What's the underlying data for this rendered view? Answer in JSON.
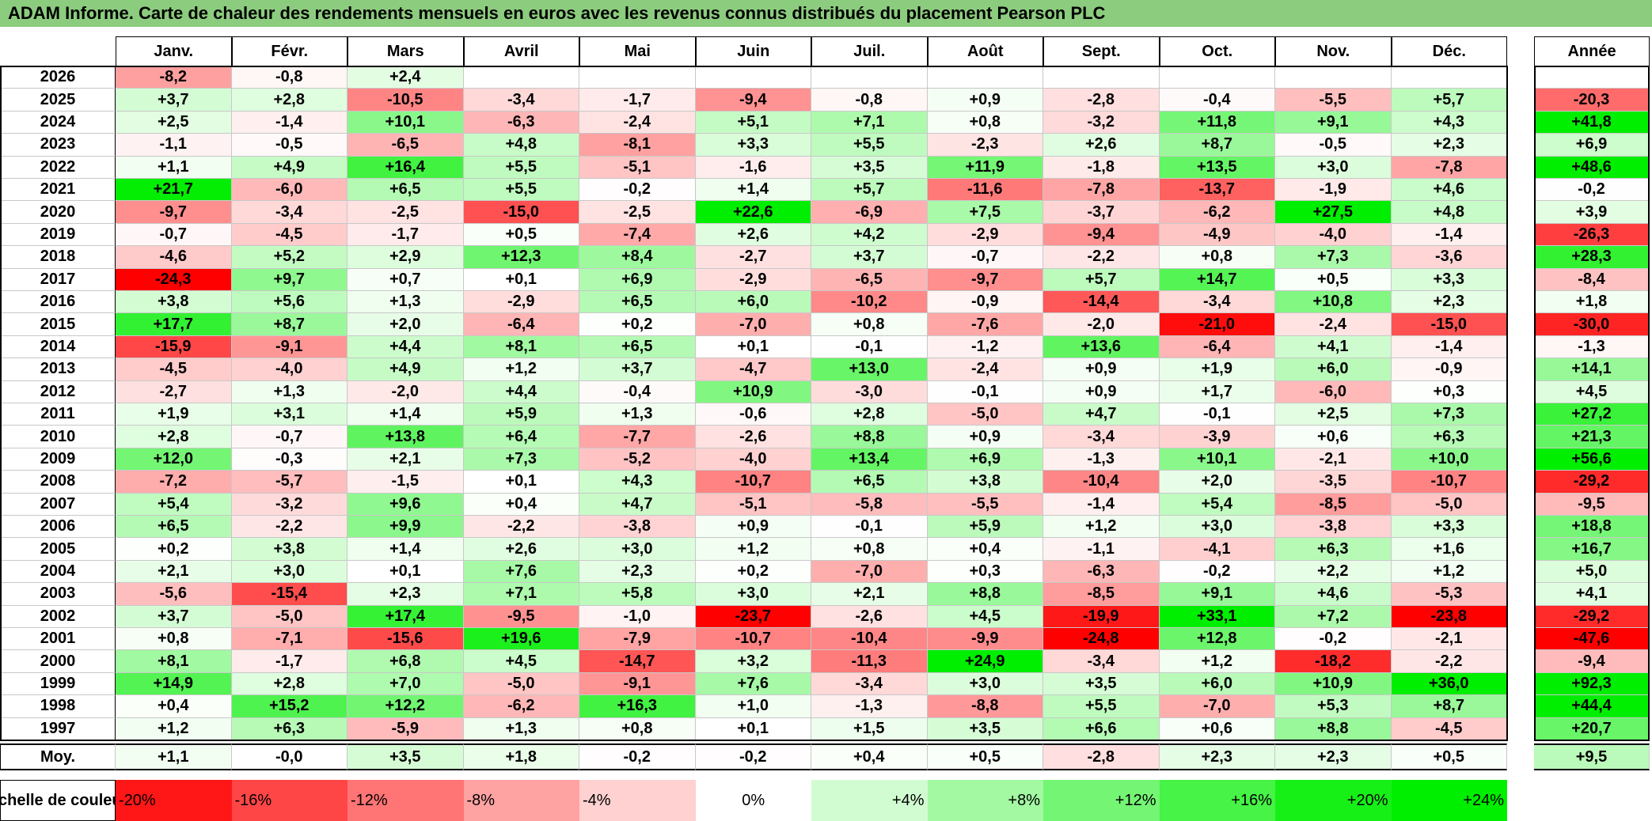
{
  "title": "ADAM Informe. Carte de chaleur des rendements mensuels en euros avec les revenus connus distribués du placement Pearson PLC",
  "chart_data": {
    "type": "heatmap",
    "title": "ADAM Informe. Carte de chaleur des rendements mensuels en euros avec les revenus connus distribués du placement Pearson PLC",
    "columns": [
      "Janv.",
      "Févr.",
      "Mars",
      "Avril",
      "Mai",
      "Juin",
      "Juil.",
      "Août",
      "Sept.",
      "Oct.",
      "Nov.",
      "Déc."
    ],
    "year_column_label": "Année",
    "rows": [
      {
        "year": "2026",
        "months": [
          "-8,2",
          "-0,8",
          "+2,4",
          "",
          "",
          "",
          "",
          "",
          "",
          "",
          "",
          ""
        ],
        "annual": ""
      },
      {
        "year": "2025",
        "months": [
          "+3,7",
          "+2,8",
          "-10,5",
          "-3,4",
          "-1,7",
          "-9,4",
          "-0,8",
          "+0,9",
          "-2,8",
          "-0,4",
          "-5,5",
          "+5,7"
        ],
        "annual": "-20,3"
      },
      {
        "year": "2024",
        "months": [
          "+2,5",
          "-1,4",
          "+10,1",
          "-6,3",
          "-2,4",
          "+5,1",
          "+7,1",
          "+0,8",
          "-3,2",
          "+11,8",
          "+9,1",
          "+4,3"
        ],
        "annual": "+41,8"
      },
      {
        "year": "2023",
        "months": [
          "-1,1",
          "-0,5",
          "-6,5",
          "+4,8",
          "-8,1",
          "+3,3",
          "+5,5",
          "-2,3",
          "+2,6",
          "+8,7",
          "-0,5",
          "+2,3"
        ],
        "annual": "+6,9"
      },
      {
        "year": "2022",
        "months": [
          "+1,1",
          "+4,9",
          "+16,4",
          "+5,5",
          "-5,1",
          "-1,6",
          "+3,5",
          "+11,9",
          "-1,8",
          "+13,5",
          "+3,0",
          "-7,8"
        ],
        "annual": "+48,6"
      },
      {
        "year": "2021",
        "months": [
          "+21,7",
          "-6,0",
          "+6,5",
          "+5,5",
          "-0,2",
          "+1,4",
          "+5,7",
          "-11,6",
          "-7,8",
          "-13,7",
          "-1,9",
          "+4,6"
        ],
        "annual": "-0,2"
      },
      {
        "year": "2020",
        "months": [
          "-9,7",
          "-3,4",
          "-2,5",
          "-15,0",
          "-2,5",
          "+22,6",
          "-6,9",
          "+7,5",
          "-3,7",
          "-6,2",
          "+27,5",
          "+4,8"
        ],
        "annual": "+3,9"
      },
      {
        "year": "2019",
        "months": [
          "-0,7",
          "-4,5",
          "-1,7",
          "+0,5",
          "-7,4",
          "+2,6",
          "+4,2",
          "-2,9",
          "-9,4",
          "-4,9",
          "-4,0",
          "-1,4"
        ],
        "annual": "-26,3"
      },
      {
        "year": "2018",
        "months": [
          "-4,6",
          "+5,2",
          "+2,9",
          "+12,3",
          "+8,4",
          "-2,7",
          "+3,7",
          "-0,7",
          "-2,2",
          "+0,8",
          "+7,3",
          "-3,6"
        ],
        "annual": "+28,3"
      },
      {
        "year": "2017",
        "months": [
          "-24,3",
          "+9,7",
          "+0,7",
          "+0,1",
          "+6,9",
          "-2,9",
          "-6,5",
          "-9,7",
          "+5,7",
          "+14,7",
          "+0,5",
          "+3,3"
        ],
        "annual": "-8,4"
      },
      {
        "year": "2016",
        "months": [
          "+3,8",
          "+5,6",
          "+1,3",
          "-2,9",
          "+6,5",
          "+6,0",
          "-10,2",
          "-0,9",
          "-14,4",
          "-3,4",
          "+10,8",
          "+2,3"
        ],
        "annual": "+1,8"
      },
      {
        "year": "2015",
        "months": [
          "+17,7",
          "+8,7",
          "+2,0",
          "-6,4",
          "+0,2",
          "-7,0",
          "+0,8",
          "-7,6",
          "-2,0",
          "-21,0",
          "-2,4",
          "-15,0"
        ],
        "annual": "-30,0"
      },
      {
        "year": "2014",
        "months": [
          "-15,9",
          "-9,1",
          "+4,4",
          "+8,1",
          "+6,5",
          "+0,1",
          "-0,1",
          "-1,2",
          "+13,6",
          "-6,4",
          "+4,1",
          "-1,4"
        ],
        "annual": "-1,3"
      },
      {
        "year": "2013",
        "months": [
          "-4,5",
          "-4,0",
          "+4,9",
          "+1,2",
          "+3,7",
          "-4,7",
          "+13,0",
          "-2,4",
          "+0,9",
          "+1,9",
          "+6,0",
          "-0,9"
        ],
        "annual": "+14,1"
      },
      {
        "year": "2012",
        "months": [
          "-2,7",
          "+1,3",
          "-2,0",
          "+4,4",
          "-0,4",
          "+10,9",
          "-3,0",
          "-0,1",
          "+0,9",
          "+1,7",
          "-6,0",
          "+0,3"
        ],
        "annual": "+4,5"
      },
      {
        "year": "2011",
        "months": [
          "+1,9",
          "+3,1",
          "+1,4",
          "+5,9",
          "+1,3",
          "-0,6",
          "+2,8",
          "-5,0",
          "+4,7",
          "-0,1",
          "+2,5",
          "+7,3"
        ],
        "annual": "+27,2"
      },
      {
        "year": "2010",
        "months": [
          "+2,8",
          "-0,7",
          "+13,8",
          "+6,4",
          "-7,7",
          "-2,6",
          "+8,8",
          "+0,9",
          "-3,4",
          "-3,9",
          "+0,6",
          "+6,3"
        ],
        "annual": "+21,3"
      },
      {
        "year": "2009",
        "months": [
          "+12,0",
          "-0,3",
          "+2,1",
          "+7,3",
          "-5,2",
          "-4,0",
          "+13,4",
          "+6,9",
          "-1,3",
          "+10,1",
          "-2,1",
          "+10,0"
        ],
        "annual": "+56,6"
      },
      {
        "year": "2008",
        "months": [
          "-7,2",
          "-5,7",
          "-1,5",
          "+0,1",
          "+4,3",
          "-10,7",
          "+6,5",
          "+3,8",
          "-10,4",
          "+2,0",
          "-3,5",
          "-10,7"
        ],
        "annual": "-29,2"
      },
      {
        "year": "2007",
        "months": [
          "+5,4",
          "-3,2",
          "+9,6",
          "+0,4",
          "+4,7",
          "-5,1",
          "-5,8",
          "-5,5",
          "-1,4",
          "+5,4",
          "-8,5",
          "-5,0"
        ],
        "annual": "-9,5"
      },
      {
        "year": "2006",
        "months": [
          "+6,5",
          "-2,2",
          "+9,9",
          "-2,2",
          "-3,8",
          "+0,9",
          "-0,1",
          "+5,9",
          "+1,2",
          "+3,0",
          "-3,8",
          "+3,3"
        ],
        "annual": "+18,8"
      },
      {
        "year": "2005",
        "months": [
          "+0,2",
          "+3,8",
          "+1,4",
          "+2,6",
          "+3,0",
          "+1,2",
          "+0,8",
          "+0,4",
          "-1,1",
          "-4,1",
          "+6,3",
          "+1,6"
        ],
        "annual": "+16,7"
      },
      {
        "year": "2004",
        "months": [
          "+2,1",
          "+3,0",
          "+0,1",
          "+7,6",
          "+2,3",
          "+0,2",
          "-7,0",
          "+0,3",
          "-6,3",
          "-0,2",
          "+2,2",
          "+1,2"
        ],
        "annual": "+5,0"
      },
      {
        "year": "2003",
        "months": [
          "-5,6",
          "-15,4",
          "+2,3",
          "+7,1",
          "+5,8",
          "+3,0",
          "+2,1",
          "+8,8",
          "-8,5",
          "+9,1",
          "+4,6",
          "-5,3"
        ],
        "annual": "+4,1"
      },
      {
        "year": "2002",
        "months": [
          "+3,7",
          "-5,0",
          "+17,4",
          "-9,5",
          "-1,0",
          "-23,7",
          "-2,6",
          "+4,5",
          "-19,9",
          "+33,1",
          "+7,2",
          "-23,8"
        ],
        "annual": "-29,2"
      },
      {
        "year": "2001",
        "months": [
          "+0,8",
          "-7,1",
          "-15,6",
          "+19,6",
          "-7,9",
          "-10,7",
          "-10,4",
          "-9,9",
          "-24,8",
          "+12,8",
          "-0,2",
          "-2,1"
        ],
        "annual": "-47,6"
      },
      {
        "year": "2000",
        "months": [
          "+8,1",
          "-1,7",
          "+6,8",
          "+4,5",
          "-14,7",
          "+3,2",
          "-11,3",
          "+24,9",
          "-3,4",
          "+1,2",
          "-18,2",
          "-2,2"
        ],
        "annual": "-9,4"
      },
      {
        "year": "1999",
        "months": [
          "+14,9",
          "+2,8",
          "+7,0",
          "-5,0",
          "-9,1",
          "+7,6",
          "-3,4",
          "+3,0",
          "+3,5",
          "+6,0",
          "+10,9",
          "+36,0"
        ],
        "annual": "+92,3"
      },
      {
        "year": "1998",
        "months": [
          "+0,4",
          "+15,2",
          "+12,2",
          "-6,2",
          "+16,3",
          "+1,0",
          "-1,3",
          "-8,8",
          "+5,5",
          "-7,0",
          "+5,3",
          "+8,7"
        ],
        "annual": "+44,4"
      },
      {
        "year": "1997",
        "months": [
          "+1,2",
          "+6,3",
          "-5,9",
          "+1,3",
          "+0,8",
          "+0,1",
          "+1,5",
          "+3,5",
          "+6,6",
          "+0,6",
          "+8,8",
          "-4,5"
        ],
        "annual": "+20,7"
      }
    ],
    "average": {
      "label": "Moy.",
      "months": [
        "+1,1",
        "-0,0",
        "+3,5",
        "+1,8",
        "-0,2",
        "-0,2",
        "+0,4",
        "+0,5",
        "-2,8",
        "+2,3",
        "+2,3",
        "+0,5"
      ],
      "annual": "+9,5"
    },
    "color_scale": {
      "label": "Echelle de couleur",
      "stops": [
        "-20%",
        "-16%",
        "-12%",
        "-8%",
        "-4%",
        "0%",
        "+4%",
        "+8%",
        "+12%",
        "+16%",
        "+20%",
        "+24%"
      ]
    },
    "colors": {
      "negative_max": "#ff0000",
      "neutral": "#ffffff",
      "positive_max": "#00ee00",
      "title_bar": "#8ccc7e"
    }
  }
}
